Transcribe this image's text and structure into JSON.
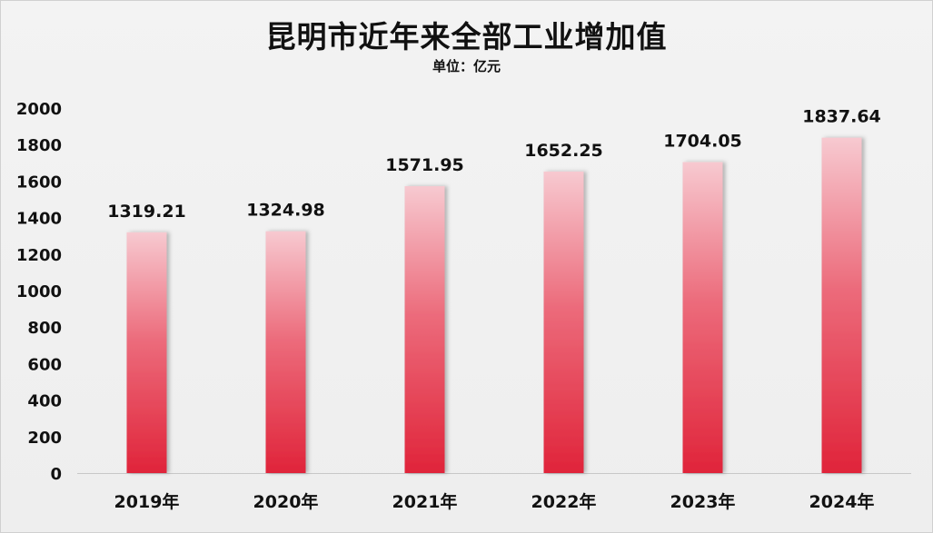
{
  "chart_data": {
    "type": "bar",
    "title": "昆明市近年来全部工业增加值",
    "subtitle": "单位：亿元",
    "categories": [
      "2019年",
      "2020年",
      "2021年",
      "2022年",
      "2023年",
      "2024年"
    ],
    "values": [
      1319.21,
      1324.98,
      1571.95,
      1652.25,
      1704.05,
      1837.64
    ],
    "data_labels": [
      "1319.21",
      "1324.98",
      "1571.95",
      "1652.25",
      "1704.05",
      "1837.64"
    ],
    "ylim": [
      0,
      2000
    ],
    "yticks": [
      0,
      200,
      400,
      600,
      800,
      1000,
      1200,
      1400,
      1600,
      1800,
      2000
    ],
    "grid": false,
    "bar_color_top": "#f7c9d0",
    "bar_color_bottom": "#e0243a",
    "text_color": "#111111"
  }
}
